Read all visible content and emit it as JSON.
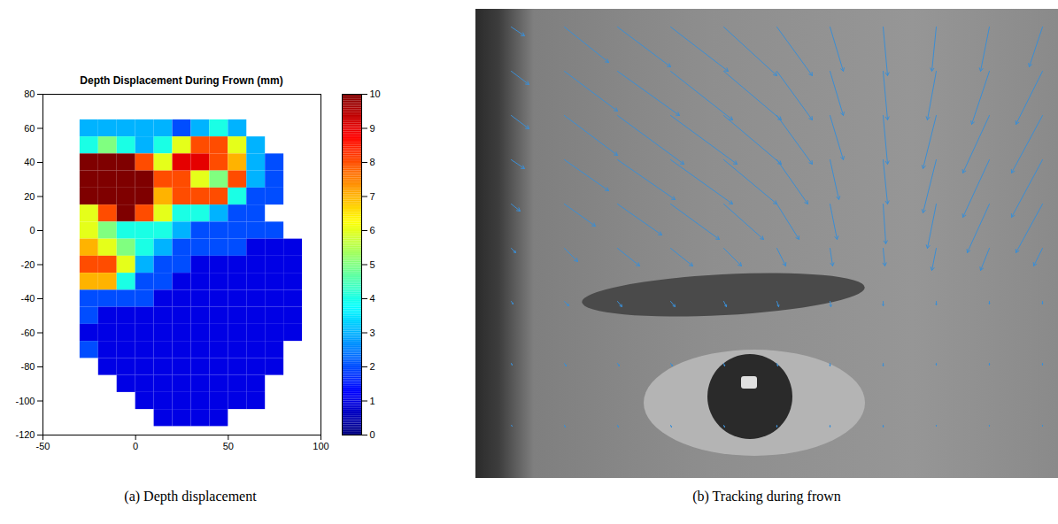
{
  "chart_data": [
    {
      "type": "heatmap",
      "title": "Depth Displacement During Frown (mm)",
      "caption": "(a) Depth displacement",
      "xlim": [
        -50,
        100
      ],
      "xticks": [
        -50,
        0,
        50,
        100
      ],
      "ylim": [
        -120,
        80
      ],
      "yticks": [
        -120,
        -100,
        -80,
        -60,
        -40,
        -20,
        0,
        20,
        40,
        60,
        80
      ],
      "grid": false,
      "x": [
        -25,
        -15,
        -5,
        5,
        15,
        25,
        35,
        45,
        55,
        65,
        75,
        85
      ],
      "y": [
        60,
        50,
        40,
        30,
        20,
        10,
        0,
        -10,
        -20,
        -30,
        -40,
        -50,
        -60,
        -70,
        -80,
        -90,
        -100,
        -110
      ],
      "values": [
        [
          3,
          3,
          3,
          3,
          3,
          2,
          3,
          4,
          3,
          null,
          null,
          null
        ],
        [
          4,
          5,
          4,
          3,
          4,
          6,
          8,
          8,
          6,
          3,
          null,
          null
        ],
        [
          10,
          10,
          10,
          8,
          6,
          9,
          9,
          8,
          7,
          3,
          2,
          null
        ],
        [
          10,
          10,
          10,
          10,
          8,
          8,
          6,
          5,
          8,
          3,
          2,
          null
        ],
        [
          10,
          10,
          10,
          10,
          7,
          8,
          8,
          8,
          4,
          2,
          2,
          null
        ],
        [
          6,
          8,
          10,
          8,
          6,
          4,
          4,
          3,
          2,
          2,
          null,
          null
        ],
        [
          6,
          5,
          4,
          4,
          4,
          3,
          2,
          2,
          2,
          2,
          2,
          null
        ],
        [
          7,
          6,
          5,
          4,
          3,
          2,
          2,
          2,
          2,
          1,
          1,
          1
        ],
        [
          8,
          8,
          6,
          3,
          2,
          2,
          1,
          1,
          1,
          1,
          1,
          1
        ],
        [
          7,
          7,
          4,
          2,
          2,
          1,
          1,
          1,
          1,
          1,
          1,
          1
        ],
        [
          2,
          2,
          2,
          2,
          1,
          1,
          1,
          1,
          1,
          1,
          1,
          1
        ],
        [
          2,
          1,
          1,
          1,
          1,
          1,
          1,
          1,
          1,
          1,
          1,
          1
        ],
        [
          1,
          1,
          1,
          1,
          1,
          1,
          1,
          1,
          1,
          1,
          1,
          1
        ],
        [
          2,
          1,
          1,
          1,
          1,
          1,
          1,
          1,
          1,
          1,
          1,
          null
        ],
        [
          null,
          1,
          1,
          1,
          1,
          1,
          1,
          1,
          1,
          1,
          1,
          null
        ],
        [
          null,
          null,
          1,
          1,
          1,
          1,
          1,
          1,
          1,
          1,
          null,
          null
        ],
        [
          null,
          null,
          null,
          1,
          1,
          1,
          1,
          1,
          1,
          1,
          null,
          null
        ],
        [
          null,
          null,
          null,
          null,
          1,
          1,
          1,
          1,
          null,
          null,
          null,
          null
        ]
      ],
      "colorbar": {
        "range": [
          0,
          10
        ],
        "ticks": [
          0,
          1,
          2,
          3,
          4,
          5,
          6,
          7,
          8,
          9,
          10
        ]
      }
    },
    {
      "type": "vector_field",
      "caption": "(b) Tracking during frown",
      "tick_labels": false,
      "color": "#3b8ed4",
      "xlim": [
        0,
        658
      ],
      "ylim": [
        530,
        0
      ],
      "x": [
        40,
        100,
        160,
        220,
        280,
        340,
        400,
        460,
        520,
        580,
        640
      ],
      "y": [
        20,
        70,
        120,
        170,
        220,
        270,
        330,
        400,
        470
      ],
      "u": [
        [
          15,
          50,
          60,
          65,
          60,
          40,
          15,
          5,
          -5,
          -10,
          -15
        ],
        [
          20,
          60,
          70,
          70,
          65,
          40,
          15,
          5,
          -10,
          -20,
          -30
        ],
        [
          20,
          60,
          75,
          75,
          65,
          40,
          15,
          5,
          -15,
          -30,
          -35
        ],
        [
          15,
          50,
          65,
          70,
          60,
          35,
          10,
          5,
          -15,
          -30,
          -35
        ],
        [
          10,
          35,
          50,
          55,
          45,
          25,
          8,
          3,
          -10,
          -25,
          -30
        ],
        [
          5,
          15,
          25,
          25,
          20,
          10,
          3,
          2,
          -5,
          -10,
          -10
        ],
        [
          2,
          5,
          5,
          5,
          3,
          2,
          1,
          0,
          0,
          0,
          0
        ],
        [
          1,
          2,
          2,
          2,
          1,
          1,
          0,
          0,
          0,
          0,
          0
        ],
        [
          1,
          1,
          1,
          1,
          1,
          0,
          0,
          0,
          0,
          0,
          0
        ]
      ],
      "v": [
        [
          10,
          40,
          45,
          50,
          55,
          55,
          50,
          55,
          50,
          50,
          45
        ],
        [
          15,
          45,
          50,
          55,
          55,
          55,
          50,
          55,
          55,
          60,
          60
        ],
        [
          15,
          45,
          55,
          55,
          55,
          55,
          50,
          55,
          60,
          65,
          65
        ],
        [
          10,
          35,
          45,
          50,
          50,
          50,
          45,
          50,
          60,
          65,
          65
        ],
        [
          8,
          25,
          35,
          40,
          40,
          40,
          40,
          45,
          50,
          55,
          55
        ],
        [
          5,
          15,
          20,
          20,
          20,
          20,
          20,
          20,
          25,
          25,
          20
        ],
        [
          3,
          5,
          6,
          6,
          6,
          6,
          6,
          5,
          4,
          3,
          3
        ],
        [
          2,
          3,
          3,
          3,
          3,
          3,
          3,
          3,
          2,
          2,
          2
        ],
        [
          1,
          2,
          2,
          2,
          2,
          2,
          2,
          2,
          1,
          1,
          1
        ]
      ]
    }
  ]
}
